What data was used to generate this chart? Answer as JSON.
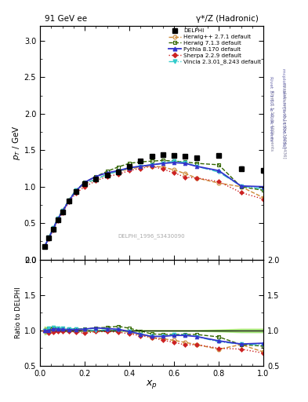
{
  "title_left": "91 GeV ee",
  "title_right": "γ*/Z (Hadronic)",
  "right_label_top": "Rivet 3.1.10, ≥ 400k events",
  "right_label_bot": "mcplots.cern.ch [arXiv:1306.3436]",
  "watermark": "DELPHI_1996_S3430090",
  "xlabel": "x_p",
  "ylabel_main": "p_T / GeV",
  "ylabel_ratio": "Ratio to DELPHI",
  "xlim": [
    0,
    1
  ],
  "ylim_main": [
    0,
    3.2
  ],
  "ylim_ratio": [
    0.5,
    2.0
  ],
  "delphi_x": [
    0.02,
    0.04,
    0.06,
    0.08,
    0.1,
    0.13,
    0.16,
    0.2,
    0.25,
    0.3,
    0.35,
    0.4,
    0.45,
    0.5,
    0.55,
    0.6,
    0.65,
    0.7,
    0.8,
    0.9,
    1.0
  ],
  "delphi_y": [
    0.18,
    0.3,
    0.42,
    0.55,
    0.65,
    0.8,
    0.93,
    1.04,
    1.1,
    1.16,
    1.2,
    1.28,
    1.35,
    1.42,
    1.44,
    1.43,
    1.42,
    1.4,
    1.43,
    1.25,
    1.22
  ],
  "delphi_yerr": [
    0.01,
    0.01,
    0.01,
    0.01,
    0.01,
    0.01,
    0.01,
    0.01,
    0.01,
    0.01,
    0.01,
    0.01,
    0.01,
    0.01,
    0.01,
    0.01,
    0.01,
    0.01,
    0.02,
    0.03,
    0.03
  ],
  "herwig_pp_x": [
    0.02,
    0.04,
    0.06,
    0.08,
    0.1,
    0.13,
    0.16,
    0.2,
    0.25,
    0.3,
    0.35,
    0.4,
    0.45,
    0.5,
    0.55,
    0.6,
    0.65,
    0.7,
    0.8,
    0.9,
    1.0
  ],
  "herwig_pp_y": [
    0.18,
    0.3,
    0.43,
    0.56,
    0.66,
    0.81,
    0.94,
    1.04,
    1.1,
    1.17,
    1.21,
    1.24,
    1.27,
    1.28,
    1.27,
    1.23,
    1.18,
    1.12,
    1.05,
    1.0,
    0.85
  ],
  "herwig713_x": [
    0.02,
    0.04,
    0.06,
    0.08,
    0.1,
    0.13,
    0.16,
    0.2,
    0.25,
    0.3,
    0.35,
    0.4,
    0.45,
    0.5,
    0.55,
    0.6,
    0.65,
    0.7,
    0.8,
    0.9,
    1.0
  ],
  "herwig713_y": [
    0.18,
    0.31,
    0.44,
    0.57,
    0.67,
    0.82,
    0.95,
    1.06,
    1.14,
    1.21,
    1.27,
    1.32,
    1.34,
    1.35,
    1.36,
    1.35,
    1.34,
    1.32,
    1.3,
    1.0,
    0.95
  ],
  "pythia_x": [
    0.02,
    0.04,
    0.06,
    0.08,
    0.1,
    0.13,
    0.16,
    0.2,
    0.25,
    0.3,
    0.35,
    0.4,
    0.45,
    0.5,
    0.55,
    0.6,
    0.65,
    0.7,
    0.8,
    0.9,
    1.0
  ],
  "pythia_y": [
    0.18,
    0.3,
    0.43,
    0.56,
    0.66,
    0.81,
    0.94,
    1.06,
    1.14,
    1.19,
    1.22,
    1.26,
    1.28,
    1.3,
    1.32,
    1.33,
    1.32,
    1.28,
    1.22,
    1.01,
    1.0
  ],
  "sherpa_x": [
    0.02,
    0.04,
    0.06,
    0.08,
    0.1,
    0.13,
    0.16,
    0.2,
    0.25,
    0.3,
    0.35,
    0.4,
    0.45,
    0.5,
    0.55,
    0.6,
    0.65,
    0.7,
    0.8,
    0.9,
    1.0
  ],
  "sherpa_y": [
    0.18,
    0.29,
    0.41,
    0.54,
    0.64,
    0.79,
    0.91,
    1.0,
    1.08,
    1.14,
    1.17,
    1.22,
    1.25,
    1.28,
    1.24,
    1.19,
    1.13,
    1.12,
    1.07,
    0.92,
    0.83
  ],
  "vincia_x": [
    0.02,
    0.04,
    0.06,
    0.08,
    0.1,
    0.13,
    0.16,
    0.2,
    0.25,
    0.3,
    0.35,
    0.4,
    0.45,
    0.5,
    0.55,
    0.6,
    0.65,
    0.7,
    0.8,
    0.9,
    1.0
  ],
  "vincia_y": [
    0.18,
    0.31,
    0.44,
    0.57,
    0.67,
    0.82,
    0.95,
    1.05,
    1.1,
    1.17,
    1.21,
    1.26,
    1.28,
    1.3,
    1.32,
    1.35,
    1.33,
    1.28,
    1.2,
    1.01,
    0.97
  ],
  "color_herwig_pp": "#cc8833",
  "color_herwig713": "#336600",
  "color_pythia": "#3333cc",
  "color_sherpa": "#cc2222",
  "color_vincia": "#33cccc",
  "color_delphi": "#000000",
  "ratio_band_yellow": "#eeee44",
  "ratio_band_green": "#44cc44",
  "ratio_band_alpha": 0.35
}
